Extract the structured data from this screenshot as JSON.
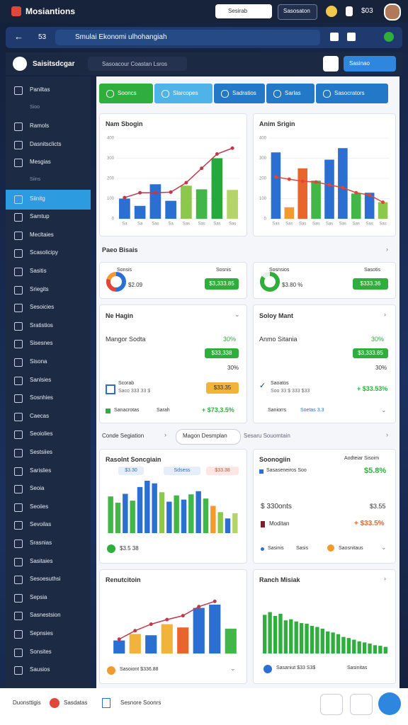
{
  "topbar": {
    "brand": "Mosiantions",
    "search": "Sesirab",
    "button": "Sasosaton",
    "count": "$03"
  },
  "navbar": {
    "step": "53",
    "query": "Smulai Ekonomi ulhohangiah"
  },
  "header": {
    "title": "Saisitsdcgar",
    "search": "Sasoacour Coastan Lsros",
    "button": "Sasinao"
  },
  "sidebar": {
    "items": [
      "Paniltas",
      "Sioo",
      "Ramols",
      "Dasnitsclicts",
      "Mesgias",
      "Siins",
      "Siinitg",
      "Samtup",
      "Mecltaies",
      "Scasolicipy",
      "Sasitis",
      "Sriegits",
      "Sesoicies",
      "Sratistios",
      "Sisesnes",
      "Sisona",
      "Sanlsies",
      "Sosnhies",
      "Caecas",
      "Seoiolies",
      "Sestsiies",
      "Sarislies",
      "Seoia",
      "Seoiies",
      "Sevoilas",
      "Srasnias",
      "Sasitaies",
      "Sesoesuthsi",
      "Sepsia",
      "Sasnestsion",
      "Sepnsies",
      "Sonsites",
      "Sausios"
    ],
    "subheadings": [
      1,
      5
    ],
    "active": 6
  },
  "tabs": [
    "Sooncs",
    "Slarcopes",
    "Sadratios",
    "Sarlas",
    "Sasocrators"
  ],
  "sections": [
    "Paeo Bisais",
    "Conde Segiation",
    "Magon Desmplan",
    "Sesaru Souomtain"
  ],
  "cards": {
    "a": {
      "label": "Sonsis",
      "value": "$2.09",
      "right": "Sosnis",
      "button": "$3,333.85",
      "donut": [
        50,
        30,
        20
      ],
      "colors": [
        "#2a6fd1",
        "#e0463a",
        "#f29a2e"
      ]
    },
    "b": {
      "label": "Sosnsios",
      "value": "$3.80 %",
      "right": "Sasotis",
      "button": "$333.36",
      "donut": [
        85,
        15
      ],
      "colors": [
        "#2fae3d",
        "#e5efe3"
      ]
    },
    "c": {
      "title": "Ne Hagin",
      "row": "Mangor Sodta",
      "pct": "30%",
      "button": "$33,338",
      "pct2": "30%",
      "check": "Scorab",
      "sub": "Saco 333 33 $",
      "pill": "$33.35",
      "footer": "Sanacrotas",
      "footer2": "Sarah",
      "delta": "+ $73,3.5%"
    },
    "d": {
      "title": "Soloy Mant",
      "row": "Anmo Sitania",
      "pct": "30%",
      "button": "$3,333.85",
      "pct2": "30%",
      "check": "Saoatos",
      "sub": "Soo 33 $ 333 $33",
      "delta": "+ $33.53%",
      "footer": "Saniorrs",
      "footer2": "Soetas 3.3"
    },
    "e": {
      "pills": [
        "$3.30",
        "Sdsess",
        "$33.38"
      ],
      "footer": "$3.5 38"
    },
    "f": {
      "title": "Soonogiin",
      "right": "Aodteiar Sisoim",
      "row1": "Sasaseneiros Soo",
      "v1": "$5.8%",
      "row2": "$ 330onts",
      "v2": "$3.55",
      "row3": "Moditan",
      "v3": "+ $33.5%",
      "footer": "Sasinis",
      "footer2": "Sasis",
      "footer3": "Saosnitaus"
    },
    "g": {
      "footer": "Sasoiont $336.88"
    },
    "h": {
      "footer": "Sasaniut $33 S3$",
      "footer2": "Sasinitas"
    }
  },
  "bottombar": [
    "Duonsttigis",
    "Sasdatas",
    "Sesnore Soonrs"
  ],
  "chart_data": [
    {
      "type": "bar",
      "title": "Nam Sbogin",
      "categories": [
        "Sa",
        "Sa",
        "Sas",
        "Sa",
        "Sas",
        "Sas",
        "Sas",
        "Sas"
      ],
      "values": [
        100,
        64,
        171,
        89,
        164,
        146,
        300,
        143
      ],
      "colors": [
        "#2a6fd1",
        "#2a6fd1",
        "#2a6fd1",
        "#2a6fd1",
        "#8cc84b",
        "#43b649",
        "#25a83c",
        "#b5d56a"
      ],
      "line": {
        "color": "#c0394a",
        "values": [
          105,
          129,
          129,
          132,
          179,
          250,
          321,
          350
        ]
      },
      "ylim": [
        0,
        400
      ],
      "yticks": [
        0,
        100,
        200,
        300,
        400
      ]
    },
    {
      "type": "bar",
      "title": "Anim Srigin",
      "categories": [
        "Sas",
        "Sas",
        "Sas",
        "Sas",
        "Sas",
        "Sas",
        "Sas",
        "Sas",
        "Sas"
      ],
      "values": [
        329,
        57,
        250,
        189,
        293,
        350,
        125,
        129,
        82
      ],
      "colors": [
        "#2a6fd1",
        "#f29a2e",
        "#e8662e",
        "#43b649",
        "#2a6fd1",
        "#2a6fd1",
        "#43b649",
        "#2a6fd1",
        "#8cc84b"
      ],
      "line": {
        "color": "#e0463a",
        "values": [
          207,
          196,
          186,
          182,
          168,
          154,
          129,
          118,
          82
        ]
      },
      "ylim": [
        0,
        400
      ],
      "yticks": [
        0,
        100,
        200,
        300,
        400
      ]
    },
    {
      "type": "bar",
      "title": "Rasolnt Soncgiain",
      "values": [
        70,
        58,
        75,
        62,
        88,
        100,
        95,
        78,
        60,
        72,
        64,
        74,
        80,
        66,
        52,
        40,
        28,
        38
      ],
      "colors": [
        "#43b649",
        "#43b649",
        "#2a6fd1",
        "#43b649",
        "#2a6fd1",
        "#2a6fd1",
        "#2a6fd1",
        "#8cc84b",
        "#2a6fd1",
        "#43b649",
        "#2a6fd1",
        "#43b649",
        "#2a6fd1",
        "#43b649",
        "#f29a2e",
        "#8cc84b",
        "#2a6fd1",
        "#b5d56a"
      ],
      "ylim": [
        0,
        100
      ]
    },
    {
      "type": "bar",
      "title": "Renutcitoin",
      "values": [
        20,
        30,
        28,
        45,
        40,
        70,
        75,
        38
      ],
      "colors": [
        "#2a6fd1",
        "#f2b33a",
        "#2a6fd1",
        "#f2b33a",
        "#e8662e",
        "#2a6fd1",
        "#2a6fd1",
        "#43b649"
      ],
      "line": {
        "color": "#c0394a",
        "values": [
          22,
          35,
          45,
          52,
          58,
          72,
          80,
          null
        ]
      },
      "ylim": [
        0,
        100
      ]
    },
    {
      "type": "bar",
      "title": "Ranch Misiak",
      "values": [
        70,
        75,
        68,
        72,
        60,
        62,
        58,
        55,
        54,
        50,
        48,
        45,
        40,
        38,
        35,
        30,
        28,
        25,
        22,
        20,
        18,
        15,
        14,
        12
      ],
      "color": "#2fae3d",
      "ylim": [
        0,
        100
      ]
    }
  ]
}
